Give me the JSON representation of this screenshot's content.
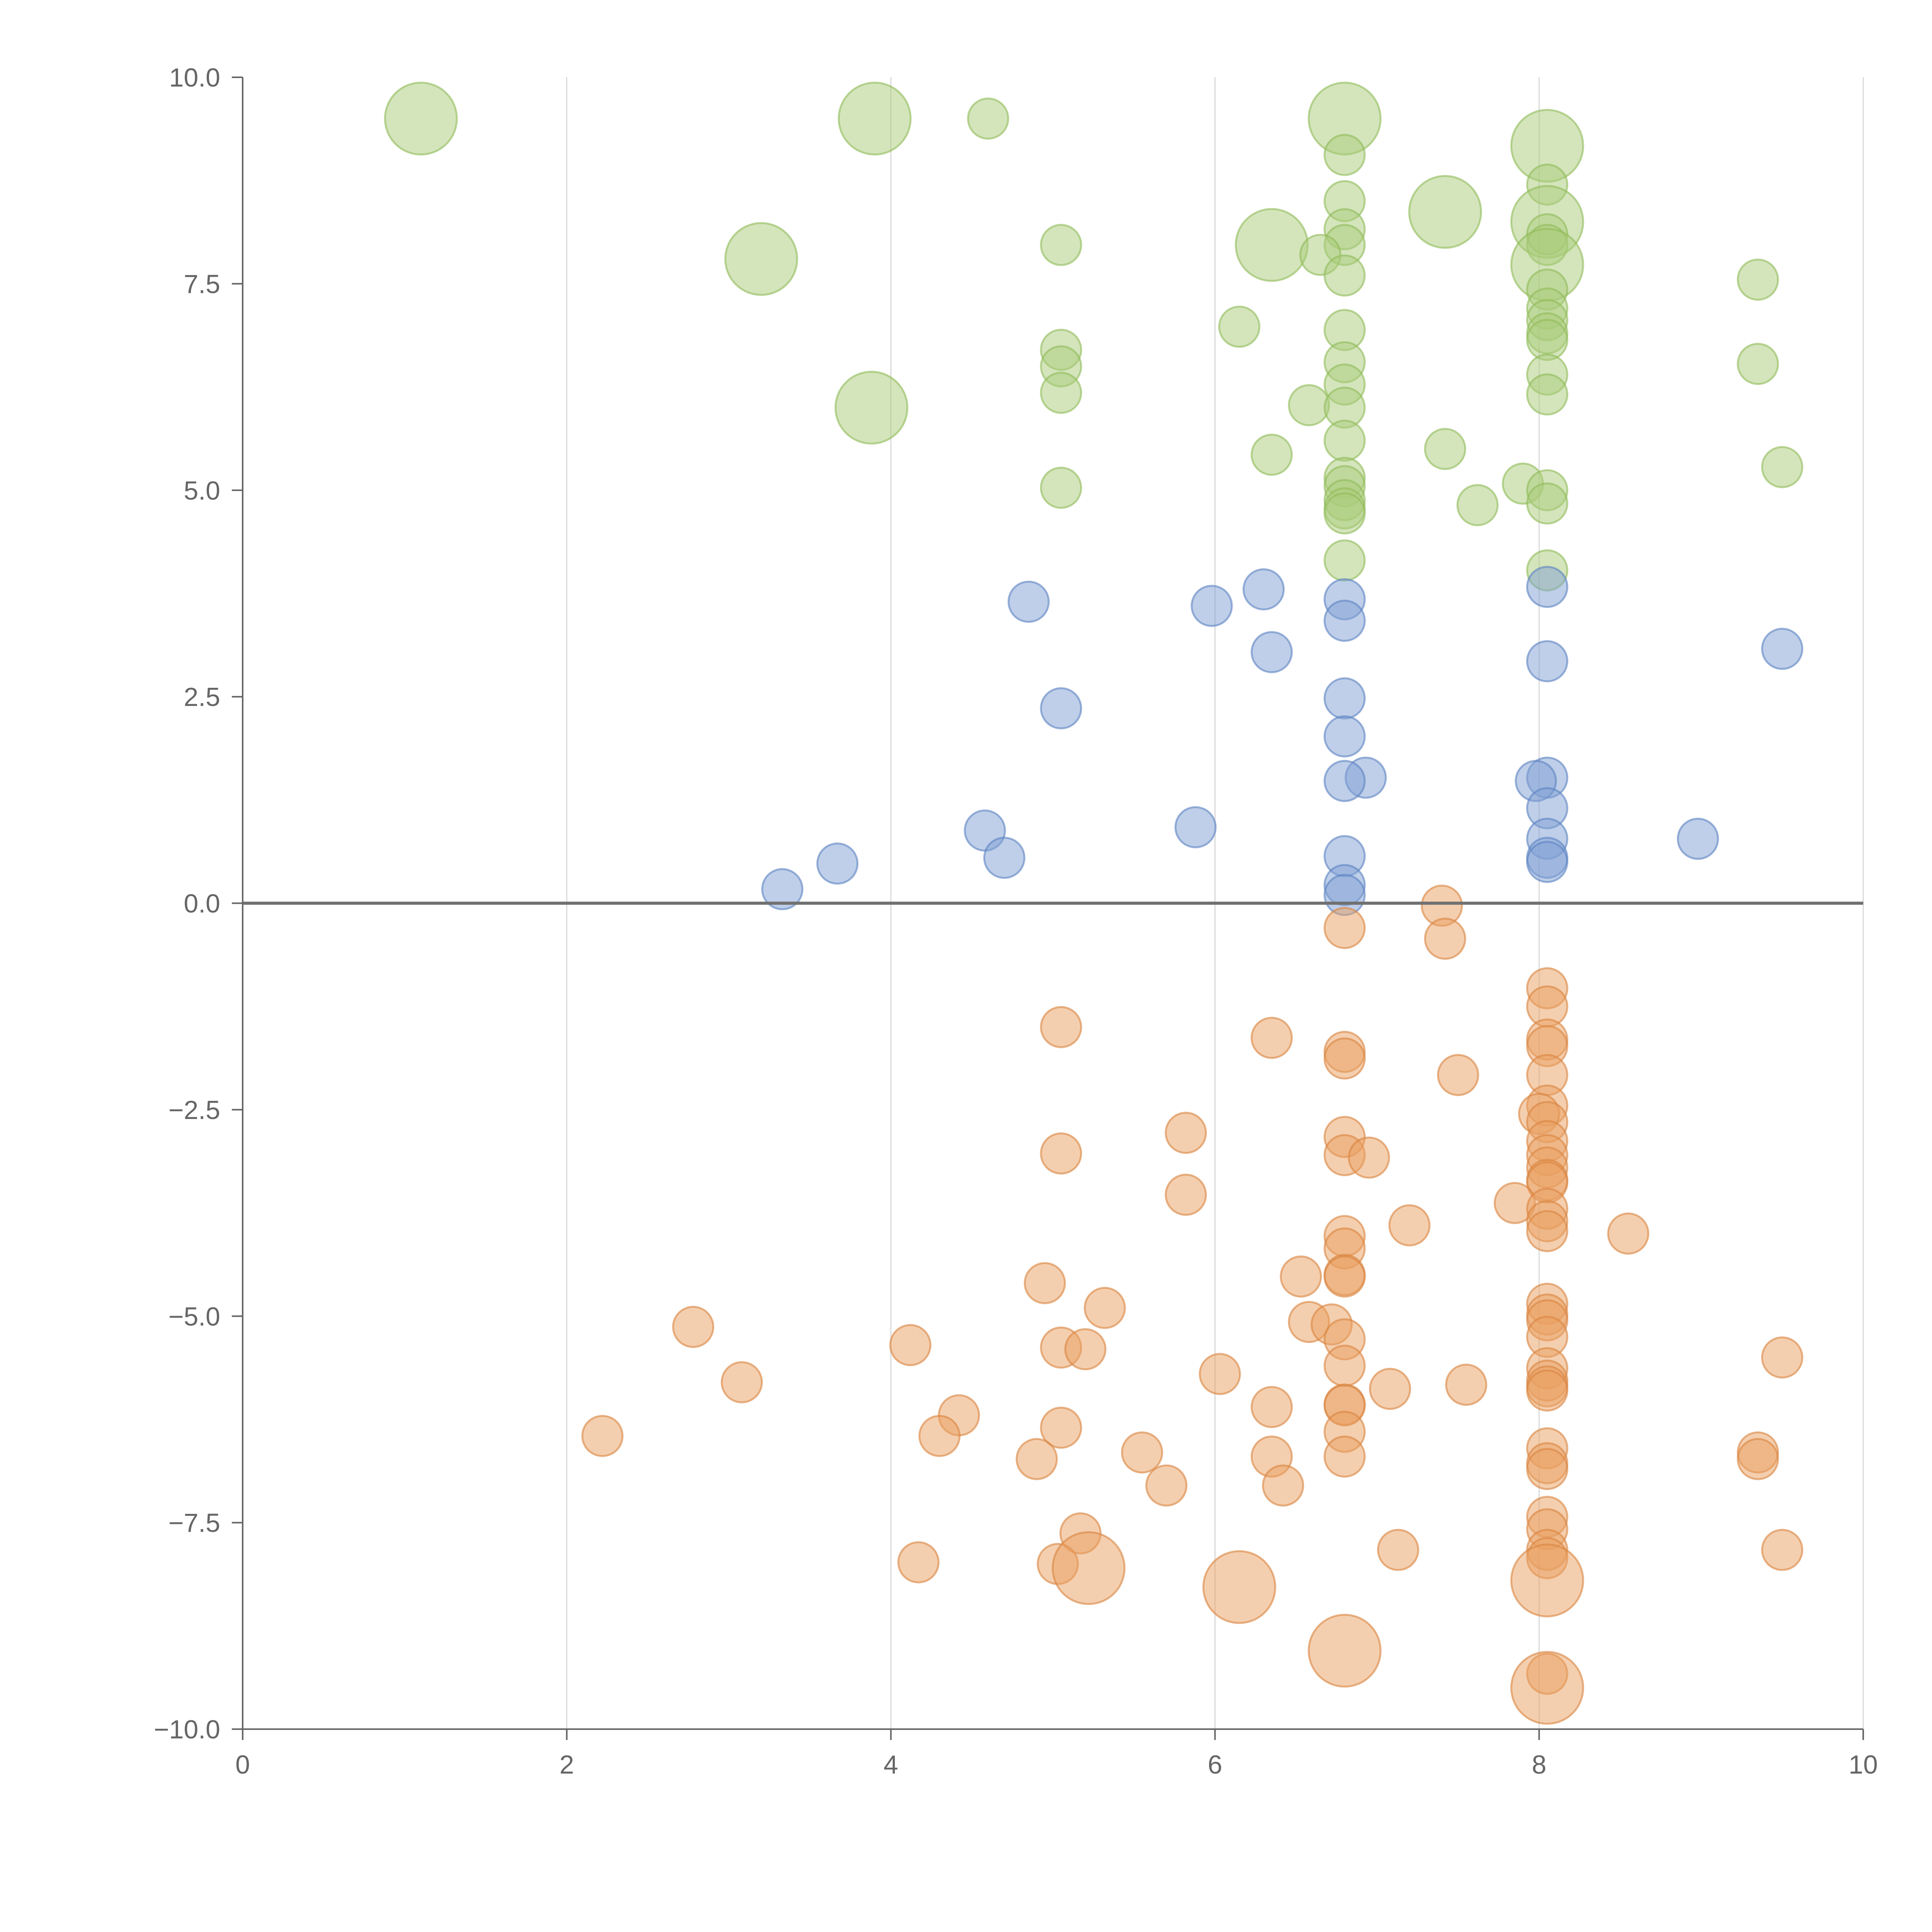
{
  "colors": {
    "positive_high": {
      "fill": "#a9cc7a",
      "stroke": "#8fbb58"
    },
    "positive_low": {
      "fill": "#7f9fd4",
      "stroke": "#5b82c2"
    },
    "negative": {
      "fill": "#ea9f5f",
      "stroke": "#d88440"
    },
    "axis": "#666666",
    "grid": "#d9d9d9",
    "zero_line": "#707070"
  },
  "chart_data": {
    "type": "scatter",
    "subtype": "bubble",
    "title": "",
    "xlabel": "",
    "ylabel": "",
    "xlim": [
      0,
      10
    ],
    "ylim": [
      -10,
      10
    ],
    "x_ticks": [
      0,
      2,
      4,
      6,
      8,
      10
    ],
    "x_tick_labels": [
      "0",
      "2",
      "4",
      "6",
      "8",
      "10"
    ],
    "y_ticks": [
      10,
      7.5,
      5,
      2.5,
      0,
      -2.5,
      -5,
      -7.5,
      -10
    ],
    "y_tick_labels": [
      "10.0",
      "7.5",
      "5.0",
      "2.5",
      "0.0",
      "−2.5",
      "−5.0",
      "−7.5",
      "−10.0"
    ],
    "vertical_grid": true,
    "horizontal_grid": false,
    "zero_line": true,
    "legend": "none",
    "series": [
      {
        "color_key": "positive_high",
        "points": [
          [
            1.1,
            9.5,
            3
          ],
          [
            3.9,
            9.5,
            3
          ],
          [
            4.6,
            9.5,
            1
          ],
          [
            6.8,
            9.5,
            3
          ],
          [
            8.05,
            9.17,
            3
          ],
          [
            6.8,
            9.06,
            1
          ],
          [
            8.05,
            8.7,
            1
          ],
          [
            6.8,
            8.5,
            1
          ],
          [
            7.42,
            8.37,
            3
          ],
          [
            8.05,
            8.25,
            3
          ],
          [
            6.8,
            8.16,
            1
          ],
          [
            8.05,
            8.1,
            1
          ],
          [
            6.8,
            7.97,
            1
          ],
          [
            5.05,
            7.97,
            1
          ],
          [
            6.35,
            7.97,
            3
          ],
          [
            8.05,
            7.97,
            1
          ],
          [
            3.2,
            7.8,
            3
          ],
          [
            6.65,
            7.85,
            1
          ],
          [
            8.05,
            7.73,
            3
          ],
          [
            6.8,
            7.6,
            1
          ],
          [
            9.35,
            7.55,
            1
          ],
          [
            8.05,
            7.43,
            1
          ],
          [
            8.05,
            7.2,
            1
          ],
          [
            8.05,
            7.06,
            1
          ],
          [
            6.15,
            6.98,
            1
          ],
          [
            6.8,
            6.94,
            1
          ],
          [
            8.05,
            6.9,
            1
          ],
          [
            8.05,
            6.82,
            1
          ],
          [
            5.05,
            6.7,
            1
          ],
          [
            6.8,
            6.55,
            1
          ],
          [
            9.35,
            6.53,
            1
          ],
          [
            5.05,
            6.5,
            1
          ],
          [
            8.05,
            6.4,
            1
          ],
          [
            6.8,
            6.28,
            1
          ],
          [
            5.05,
            6.18,
            1
          ],
          [
            8.05,
            6.16,
            1
          ],
          [
            3.88,
            6.0,
            3
          ],
          [
            6.58,
            6.03,
            1
          ],
          [
            6.8,
            6.0,
            1
          ],
          [
            6.8,
            5.6,
            1
          ],
          [
            7.42,
            5.5,
            1
          ],
          [
            6.35,
            5.43,
            1
          ],
          [
            9.5,
            5.28,
            1
          ],
          [
            6.8,
            5.15,
            1
          ],
          [
            7.9,
            5.08,
            1
          ],
          [
            6.8,
            5.05,
            1
          ],
          [
            5.05,
            5.03,
            1
          ],
          [
            8.05,
            5.0,
            1
          ],
          [
            6.8,
            4.88,
            1
          ],
          [
            8.05,
            4.84,
            1
          ],
          [
            7.62,
            4.82,
            1
          ],
          [
            6.8,
            4.78,
            1
          ],
          [
            6.8,
            4.72,
            1
          ],
          [
            6.8,
            4.15,
            1
          ],
          [
            8.05,
            4.03,
            1
          ]
        ]
      },
      {
        "color_key": "positive_low",
        "points": [
          [
            8.05,
            3.83,
            1
          ],
          [
            6.3,
            3.8,
            1
          ],
          [
            6.8,
            3.68,
            1
          ],
          [
            4.85,
            3.65,
            1
          ],
          [
            5.98,
            3.6,
            1
          ],
          [
            6.8,
            3.42,
            1
          ],
          [
            9.5,
            3.08,
            1
          ],
          [
            6.35,
            3.04,
            1
          ],
          [
            8.05,
            2.93,
            1
          ],
          [
            6.8,
            2.48,
            1
          ],
          [
            5.05,
            2.36,
            1
          ],
          [
            6.8,
            2.02,
            1
          ],
          [
            6.93,
            1.52,
            1
          ],
          [
            8.05,
            1.52,
            1
          ],
          [
            6.8,
            1.48,
            1
          ],
          [
            7.98,
            1.48,
            1
          ],
          [
            8.05,
            1.15,
            1
          ],
          [
            4.58,
            0.88,
            1
          ],
          [
            5.88,
            0.92,
            1
          ],
          [
            8.05,
            0.78,
            1
          ],
          [
            8.98,
            0.78,
            1
          ],
          [
            6.8,
            0.57,
            1
          ],
          [
            4.7,
            0.55,
            1
          ],
          [
            8.05,
            0.55,
            1
          ],
          [
            8.05,
            0.5,
            1
          ],
          [
            3.67,
            0.48,
            1
          ],
          [
            6.8,
            0.22,
            1
          ],
          [
            3.33,
            0.17,
            1
          ],
          [
            6.8,
            0.1,
            1
          ]
        ]
      },
      {
        "color_key": "negative",
        "points": [
          [
            7.4,
            -0.03,
            1
          ],
          [
            6.8,
            -0.3,
            1
          ],
          [
            7.42,
            -0.43,
            1
          ],
          [
            8.05,
            -1.03,
            1
          ],
          [
            8.05,
            -1.25,
            1
          ],
          [
            5.05,
            -1.5,
            1
          ],
          [
            6.35,
            -1.63,
            1
          ],
          [
            8.05,
            -1.65,
            1
          ],
          [
            8.05,
            -1.73,
            1
          ],
          [
            6.8,
            -1.8,
            1
          ],
          [
            6.8,
            -1.88,
            1
          ],
          [
            8.05,
            -2.08,
            1
          ],
          [
            7.5,
            -2.08,
            1
          ],
          [
            8.05,
            -2.45,
            1
          ],
          [
            8.0,
            -2.55,
            1
          ],
          [
            8.05,
            -2.65,
            1
          ],
          [
            5.82,
            -2.78,
            1
          ],
          [
            6.8,
            -2.83,
            1
          ],
          [
            8.05,
            -2.88,
            1
          ],
          [
            5.05,
            -3.03,
            1
          ],
          [
            6.8,
            -3.05,
            1
          ],
          [
            8.05,
            -3.05,
            1
          ],
          [
            6.95,
            -3.08,
            1
          ],
          [
            8.05,
            -3.2,
            1
          ],
          [
            8.05,
            -3.35,
            1
          ],
          [
            8.05,
            -3.38,
            1
          ],
          [
            5.82,
            -3.53,
            1
          ],
          [
            7.85,
            -3.63,
            1
          ],
          [
            8.05,
            -3.7,
            1
          ],
          [
            8.05,
            -3.85,
            1
          ],
          [
            7.2,
            -3.9,
            1
          ],
          [
            8.05,
            -3.97,
            1
          ],
          [
            6.8,
            -4.03,
            1
          ],
          [
            8.55,
            -4.0,
            1
          ],
          [
            6.8,
            -4.18,
            1
          ],
          [
            6.8,
            -4.5,
            1
          ],
          [
            6.8,
            -4.52,
            1
          ],
          [
            6.53,
            -4.52,
            1
          ],
          [
            4.95,
            -4.6,
            1
          ],
          [
            5.32,
            -4.9,
            1
          ],
          [
            8.05,
            -4.85,
            1
          ],
          [
            8.05,
            -4.98,
            1
          ],
          [
            8.05,
            -5.05,
            1
          ],
          [
            6.58,
            -5.07,
            1
          ],
          [
            6.72,
            -5.1,
            1
          ],
          [
            2.78,
            -5.13,
            1
          ],
          [
            8.05,
            -5.25,
            1
          ],
          [
            6.8,
            -5.28,
            1
          ],
          [
            4.12,
            -5.35,
            1
          ],
          [
            5.05,
            -5.38,
            1
          ],
          [
            5.2,
            -5.4,
            1
          ],
          [
            9.5,
            -5.5,
            1
          ],
          [
            6.8,
            -5.6,
            1
          ],
          [
            8.05,
            -5.63,
            1
          ],
          [
            6.03,
            -5.7,
            1
          ],
          [
            8.05,
            -5.78,
            1
          ],
          [
            3.08,
            -5.8,
            1
          ],
          [
            7.55,
            -5.83,
            1
          ],
          [
            8.05,
            -5.85,
            1
          ],
          [
            8.05,
            -5.9,
            1
          ],
          [
            7.08,
            -5.88,
            1
          ],
          [
            6.8,
            -6.07,
            1
          ],
          [
            6.8,
            -6.08,
            1
          ],
          [
            6.35,
            -6.1,
            1
          ],
          [
            4.42,
            -6.2,
            1
          ],
          [
            5.05,
            -6.35,
            1
          ],
          [
            6.8,
            -6.4,
            1
          ],
          [
            2.22,
            -6.45,
            1
          ],
          [
            4.3,
            -6.45,
            1
          ],
          [
            8.05,
            -6.6,
            1
          ],
          [
            5.55,
            -6.65,
            1
          ],
          [
            9.35,
            -6.65,
            1
          ],
          [
            6.35,
            -6.7,
            1
          ],
          [
            6.8,
            -6.7,
            1
          ],
          [
            9.35,
            -6.73,
            1
          ],
          [
            4.9,
            -6.73,
            1
          ],
          [
            8.05,
            -6.78,
            1
          ],
          [
            8.05,
            -6.85,
            1
          ],
          [
            5.7,
            -7.05,
            1
          ],
          [
            6.42,
            -7.05,
            1
          ],
          [
            8.05,
            -7.43,
            1
          ],
          [
            8.05,
            -7.58,
            1
          ],
          [
            5.17,
            -7.63,
            1
          ],
          [
            8.05,
            -7.83,
            1
          ],
          [
            7.13,
            -7.83,
            1
          ],
          [
            9.5,
            -7.83,
            1
          ],
          [
            8.05,
            -7.93,
            1
          ],
          [
            4.17,
            -7.98,
            1
          ],
          [
            5.03,
            -8.0,
            1
          ],
          [
            5.22,
            -8.05,
            3
          ],
          [
            6.15,
            -8.28,
            3
          ],
          [
            8.05,
            -8.2,
            3
          ],
          [
            6.8,
            -9.05,
            3
          ],
          [
            8.05,
            -9.33,
            1
          ],
          [
            8.05,
            -9.5,
            3
          ]
        ]
      }
    ]
  }
}
